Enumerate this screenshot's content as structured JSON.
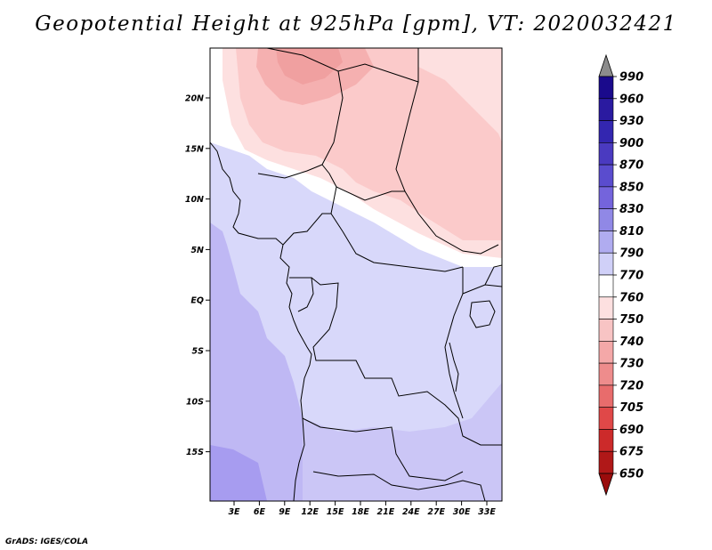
{
  "title": "Geopotential Height at 925hPa [gpm], VT: 2020032421",
  "credit": "GrADS: IGES/COLA",
  "map": {
    "lon_ticks": [
      "3E",
      "6E",
      "9E",
      "12E",
      "15E",
      "18E",
      "21E",
      "24E",
      "27E",
      "30E",
      "33E"
    ],
    "lat_ticks": [
      "20N",
      "15N",
      "10N",
      "5N",
      "EQ",
      "5S",
      "10S",
      "15S"
    ]
  },
  "colorbar": {
    "levels": [
      "990",
      "960",
      "930",
      "900",
      "870",
      "850",
      "830",
      "810",
      "790",
      "770",
      "760",
      "750",
      "740",
      "730",
      "720",
      "705",
      "690",
      "675",
      "650"
    ],
    "colors": [
      "#8c8c8c",
      "#1a0a8c",
      "#2a1aa0",
      "#3326b0",
      "#4a3ac0",
      "#5a4cce",
      "#7464dc",
      "#9088e6",
      "#b0acf0",
      "#d0d0f8",
      "#ffffff",
      "#fde0e0",
      "#f8c4c4",
      "#f4a8a8",
      "#ee8c8c",
      "#e86c6c",
      "#e04848",
      "#cc2a2a",
      "#b01818",
      "#9a0c0c"
    ]
  },
  "fields": {
    "ocean": "#bfb8f4",
    "ocean_deep": "#a79cf0",
    "land_main": "#d8d8fa",
    "land_low": "#cbc6f6",
    "band_white": "#ffffff",
    "pink_light": "#fde0e0",
    "pink_mid": "#fbcaca",
    "pink_dark": "#f5b0b0"
  }
}
